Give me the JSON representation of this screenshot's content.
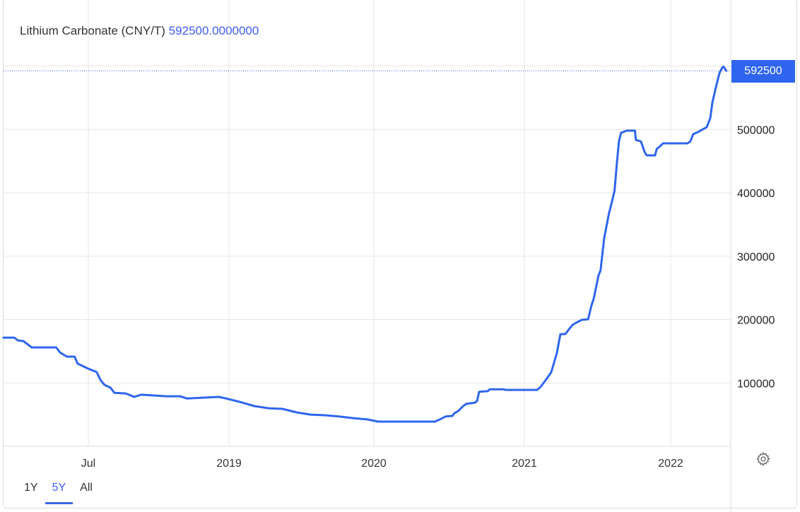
{
  "header": {
    "title": "Lithium Carbonate (CNY/T)",
    "value": "592500.0000000"
  },
  "price_badge": "592500",
  "range_buttons": [
    {
      "label": "1Y",
      "active": false
    },
    {
      "label": "5Y",
      "active": true
    },
    {
      "label": "All",
      "active": false
    }
  ],
  "colors": {
    "line": "#2f65ee",
    "accent": "#3f5bf0",
    "grid": "#e6e6e6"
  },
  "icons": {
    "settings": "gear-icon"
  },
  "chart_data": {
    "type": "line",
    "title": "Lithium Carbonate (CNY/T)",
    "xlabel": "",
    "ylabel": "",
    "ylim": [
      0,
      650000
    ],
    "y_ticks": [
      100000,
      200000,
      300000,
      400000,
      500000
    ],
    "y_tick_labels": [
      "100000",
      "200000",
      "300000",
      "400000",
      "500000"
    ],
    "x_ticks": [
      {
        "date": "2018-07-01",
        "label": "Jul"
      },
      {
        "date": "2019-01-01",
        "label": "2019"
      },
      {
        "date": "2020-01-01",
        "label": "2020"
      },
      {
        "date": "2021-01-01",
        "label": "2021"
      },
      {
        "date": "2022-01-01",
        "label": "2022"
      }
    ],
    "grid": true,
    "last_value": 592500,
    "series": [
      {
        "points": [
          [
            "2018-03-12",
            171500
          ],
          [
            "2018-03-26",
            171500
          ],
          [
            "2018-03-31",
            167000
          ],
          [
            "2018-04-07",
            166000
          ],
          [
            "2018-04-18",
            156000
          ],
          [
            "2018-05-20",
            156000
          ],
          [
            "2018-05-25",
            148000
          ],
          [
            "2018-06-03",
            141500
          ],
          [
            "2018-06-13",
            141500
          ],
          [
            "2018-06-17",
            130500
          ],
          [
            "2018-07-01",
            122500
          ],
          [
            "2018-07-12",
            117000
          ],
          [
            "2018-07-17",
            104500
          ],
          [
            "2018-07-22",
            97000
          ],
          [
            "2018-07-30",
            92500
          ],
          [
            "2018-08-04",
            84500
          ],
          [
            "2018-08-19",
            83500
          ],
          [
            "2018-08-30",
            78000
          ],
          [
            "2018-09-08",
            81500
          ],
          [
            "2018-10-11",
            79000
          ],
          [
            "2018-10-29",
            79000
          ],
          [
            "2018-11-07",
            75500
          ],
          [
            "2018-12-19",
            78000
          ],
          [
            "2018-12-28",
            75500
          ],
          [
            "2019-01-29",
            70000
          ],
          [
            "2019-03-06",
            63500
          ],
          [
            "2019-04-11",
            60000
          ],
          [
            "2019-05-16",
            59000
          ],
          [
            "2019-06-21",
            53500
          ],
          [
            "2019-07-26",
            50000
          ],
          [
            "2019-08-31",
            49000
          ],
          [
            "2019-10-06",
            47000
          ],
          [
            "2019-11-10",
            44500
          ],
          [
            "2019-12-16",
            42500
          ],
          [
            "2020-01-11",
            39000
          ],
          [
            "2020-05-28",
            39000
          ],
          [
            "2020-06-05",
            41000
          ],
          [
            "2020-06-23",
            47000
          ],
          [
            "2020-07-10",
            48000
          ],
          [
            "2020-07-15",
            52500
          ],
          [
            "2020-07-24",
            55500
          ],
          [
            "2020-08-05",
            63500
          ],
          [
            "2020-08-13",
            67000
          ],
          [
            "2020-09-03",
            69000
          ],
          [
            "2020-09-08",
            71500
          ],
          [
            "2020-09-13",
            86000
          ],
          [
            "2020-10-04",
            87000
          ],
          [
            "2020-10-09",
            90000
          ],
          [
            "2020-11-11",
            90000
          ],
          [
            "2020-11-16",
            89000
          ],
          [
            "2021-02-02",
            89000
          ],
          [
            "2021-02-10",
            93500
          ],
          [
            "2021-02-25",
            106000
          ],
          [
            "2021-03-09",
            117000
          ],
          [
            "2021-03-23",
            147000
          ],
          [
            "2021-04-01",
            177000
          ],
          [
            "2021-04-13",
            177000
          ],
          [
            "2021-05-01",
            191500
          ],
          [
            "2021-05-10",
            195000
          ],
          [
            "2021-05-24",
            199500
          ],
          [
            "2021-06-09",
            200500
          ],
          [
            "2021-06-17",
            221500
          ],
          [
            "2021-06-23",
            233000
          ],
          [
            "2021-07-05",
            269500
          ],
          [
            "2021-07-10",
            277500
          ],
          [
            "2021-07-19",
            328500
          ],
          [
            "2021-07-31",
            367500
          ],
          [
            "2021-08-07",
            384500
          ],
          [
            "2021-08-14",
            403500
          ],
          [
            "2021-08-20",
            448000
          ],
          [
            "2021-08-25",
            481000
          ],
          [
            "2021-08-30",
            494500
          ],
          [
            "2021-09-13",
            498000
          ],
          [
            "2021-10-04",
            498000
          ],
          [
            "2021-10-06",
            483500
          ],
          [
            "2021-10-19",
            481000
          ],
          [
            "2021-10-28",
            464500
          ],
          [
            "2021-11-02",
            459000
          ],
          [
            "2021-11-23",
            459000
          ],
          [
            "2021-11-27",
            469000
          ],
          [
            "2021-12-04",
            472500
          ],
          [
            "2021-12-13",
            478000
          ],
          [
            "2021-12-28",
            478000
          ],
          [
            "2022-02-12",
            478000
          ],
          [
            "2022-02-19",
            481000
          ],
          [
            "2022-02-26",
            492500
          ],
          [
            "2022-03-09",
            495500
          ],
          [
            "2022-04-01",
            503500
          ],
          [
            "2022-04-10",
            518000
          ],
          [
            "2022-04-15",
            542500
          ],
          [
            "2022-04-24",
            567000
          ],
          [
            "2022-05-03",
            589500
          ],
          [
            "2022-05-10",
            598000
          ],
          [
            "2022-05-13",
            599000
          ],
          [
            "2022-05-20",
            592500
          ]
        ]
      }
    ]
  }
}
